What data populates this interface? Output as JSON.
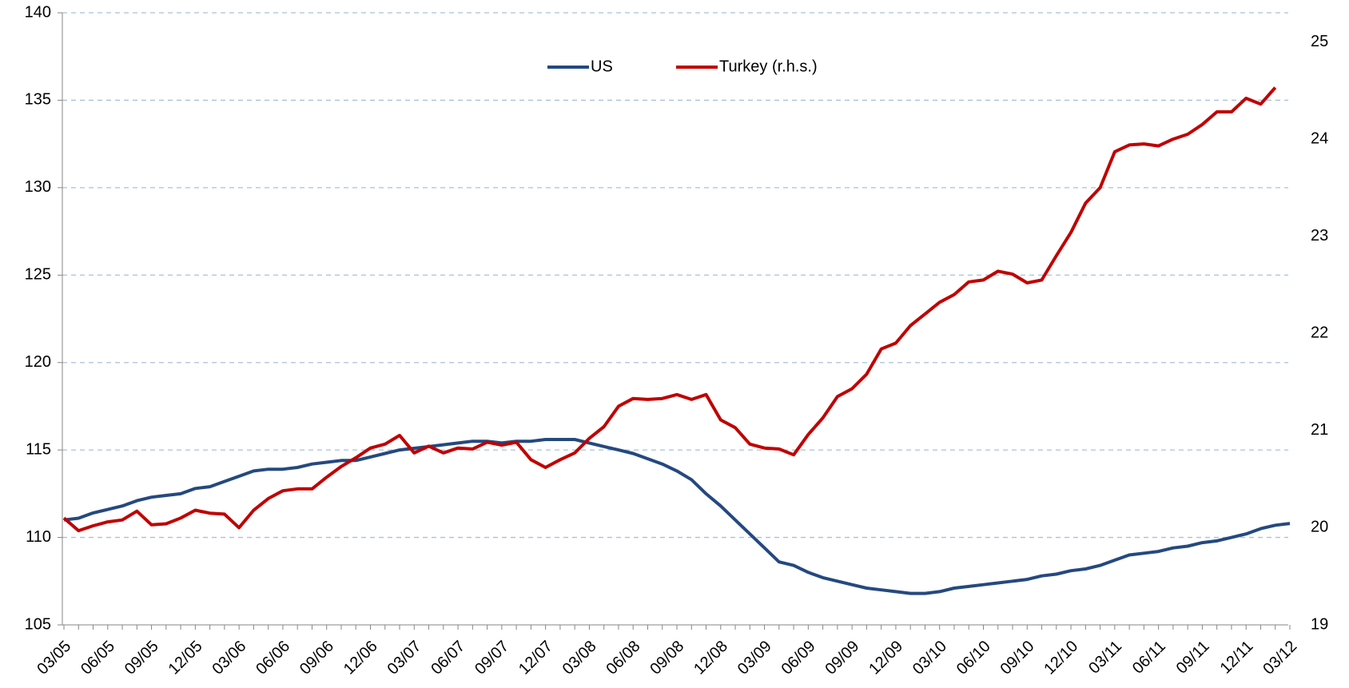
{
  "chart_data": {
    "type": "line",
    "categories": [
      "03/05",
      null,
      null,
      "06/05",
      null,
      null,
      "09/05",
      null,
      null,
      "12/05",
      null,
      null,
      "03/06",
      null,
      null,
      "06/06",
      null,
      null,
      "09/06",
      null,
      null,
      "12/06",
      null,
      null,
      "03/07",
      null,
      null,
      "06/07",
      null,
      null,
      "09/07",
      null,
      null,
      "12/07",
      null,
      null,
      "03/08",
      null,
      null,
      "06/08",
      null,
      null,
      "09/08",
      null,
      null,
      "12/08",
      null,
      null,
      "03/09",
      null,
      null,
      "06/09",
      null,
      null,
      "09/09",
      null,
      null,
      "12/09",
      null,
      null,
      "03/10",
      null,
      null,
      "06/10",
      null,
      null,
      "09/10",
      null,
      null,
      "12/10",
      null,
      null,
      "03/11",
      null,
      null,
      "06/11",
      null,
      null,
      "09/11",
      null,
      null,
      "12/11",
      null,
      null,
      "03/12"
    ],
    "series": [
      {
        "name": "US",
        "color": "#24497f",
        "values": [
          111.0,
          111.1,
          111.4,
          111.6,
          111.8,
          112.1,
          112.3,
          112.4,
          112.5,
          112.8,
          112.9,
          113.2,
          113.5,
          113.8,
          113.9,
          113.9,
          114.0,
          114.2,
          114.3,
          114.4,
          114.4,
          114.6,
          114.8,
          115.0,
          115.1,
          115.2,
          115.3,
          115.4,
          115.5,
          115.5,
          115.4,
          115.5,
          115.5,
          115.6,
          115.6,
          115.6,
          115.4,
          115.2,
          115.0,
          114.8,
          114.5,
          114.2,
          113.8,
          113.3,
          112.5,
          111.8,
          111.0,
          110.2,
          109.4,
          108.6,
          108.4,
          108.0,
          107.7,
          107.5,
          107.3,
          107.1,
          107.0,
          106.9,
          106.8,
          106.8,
          106.9,
          107.1,
          107.2,
          107.3,
          107.4,
          107.5,
          107.6,
          107.8,
          107.9,
          108.1,
          108.2,
          108.4,
          108.7,
          109.0,
          109.1,
          109.2,
          109.4,
          109.5,
          109.7,
          109.8,
          110.0,
          110.2,
          110.5,
          110.7,
          110.8
        ]
      },
      {
        "name": "Turkey (r.h.s.)",
        "color": "#c00000",
        "axis": "y2",
        "values": [
          20.1,
          19.97,
          20.02,
          20.06,
          20.08,
          20.17,
          20.03,
          20.04,
          20.1,
          20.18,
          20.15,
          20.14,
          20.0,
          20.18,
          20.3,
          20.38,
          20.4,
          20.4,
          20.52,
          20.63,
          20.72,
          20.82,
          20.86,
          20.95,
          20.77,
          20.84,
          20.77,
          20.82,
          20.81,
          20.88,
          20.85,
          20.88,
          20.7,
          20.62,
          20.7,
          20.77,
          20.92,
          21.04,
          21.25,
          21.33,
          21.32,
          21.33,
          21.37,
          21.32,
          21.37,
          21.11,
          21.03,
          20.86,
          20.82,
          20.81,
          20.75,
          20.96,
          21.13,
          21.35,
          21.43,
          21.58,
          21.84,
          21.9,
          22.08,
          22.2,
          22.32,
          22.4,
          22.53,
          22.55,
          22.64,
          22.61,
          22.52,
          22.55,
          22.8,
          23.04,
          23.34,
          23.5,
          23.87,
          23.94,
          23.95,
          23.93,
          24.0,
          24.05,
          24.15,
          24.28,
          24.28,
          24.42,
          24.36,
          24.53,
          null
        ]
      }
    ],
    "ylim": [
      105,
      140
    ],
    "yticks": [
      105,
      110,
      115,
      120,
      125,
      130,
      135,
      140
    ],
    "y2lim": [
      19,
      25.3
    ],
    "y2ticks": [
      19,
      20,
      21,
      22,
      23,
      24,
      25
    ],
    "grid": true,
    "legend": "top"
  }
}
